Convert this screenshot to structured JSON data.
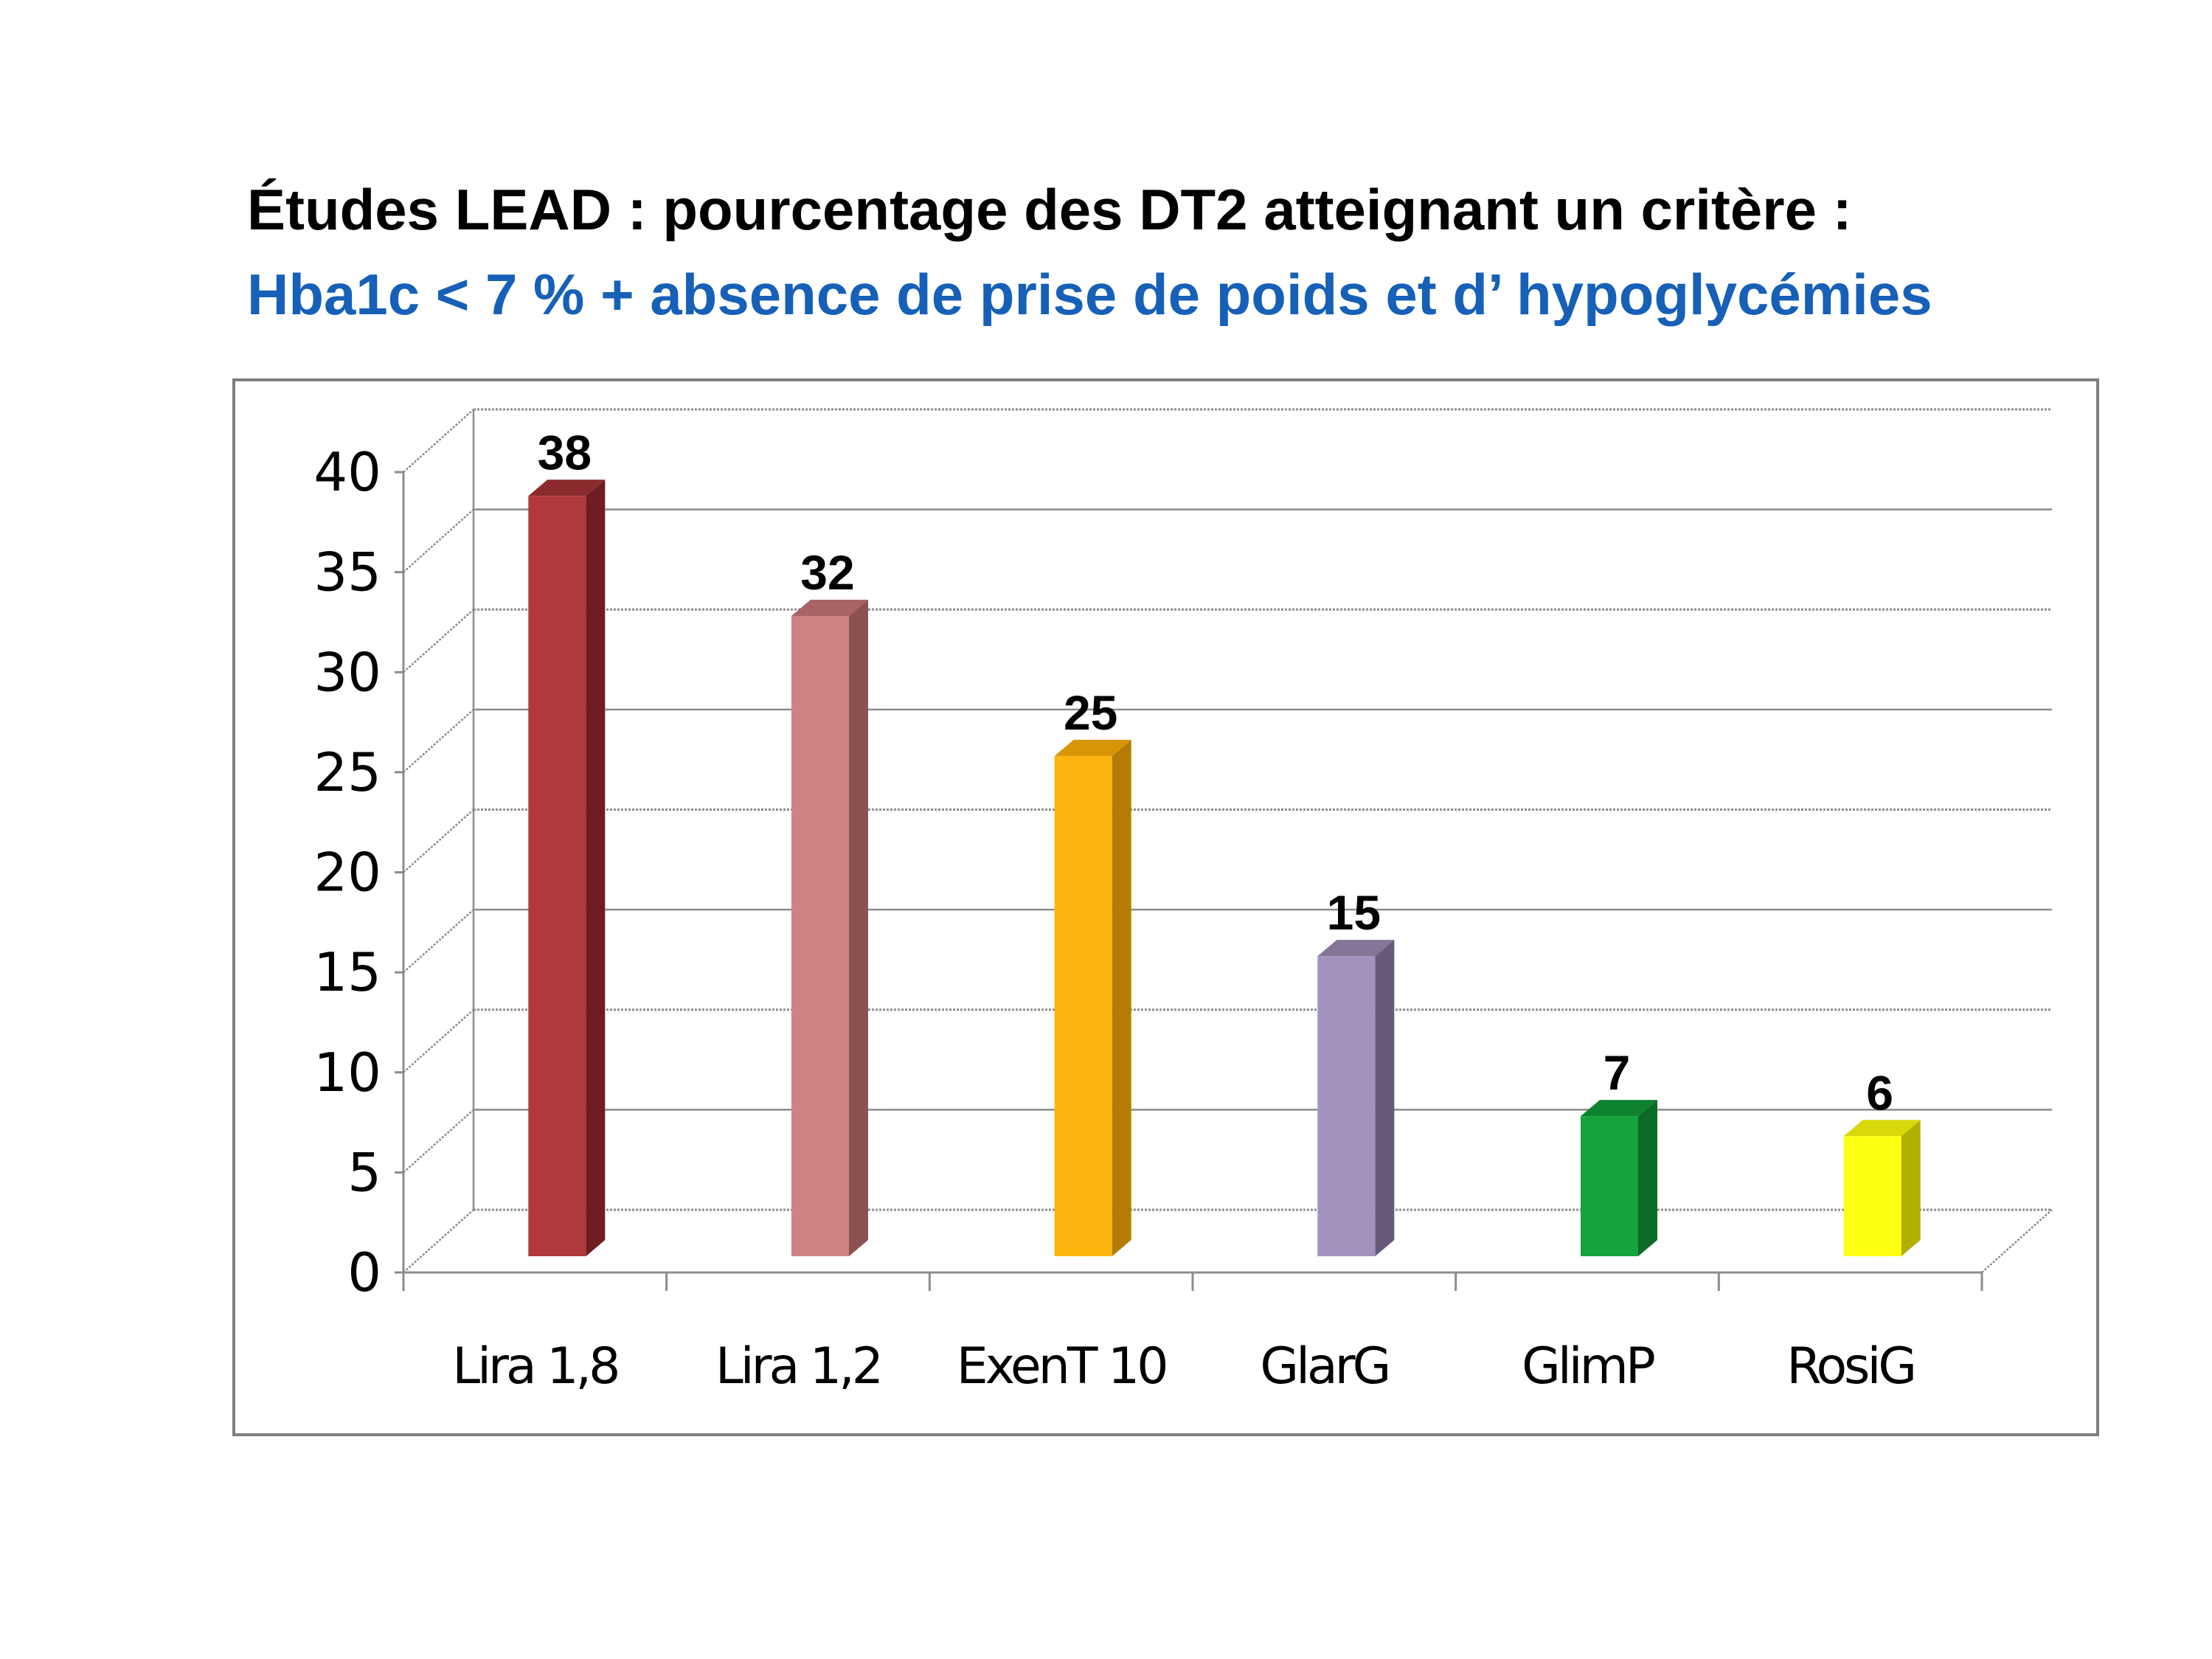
{
  "title": "Études LEAD  :  pourcentage des DT2 atteignant un critère :",
  "subtitle": "Hba1c < 7 % + absence de prise de poids et d’ hypoglycémies",
  "colors": {
    "title": "#000000",
    "subtitle": "#1660B8",
    "frame": "#7F7F7F",
    "gridline": "#8C8C8C",
    "text": "#000000"
  },
  "chart_data": {
    "type": "bar",
    "style": "3d-columns",
    "categories": [
      "Lira 1,8",
      "Lira 1,2",
      "ExenT 10",
      "GlarG",
      "GlimP",
      "RosiG"
    ],
    "values": [
      38,
      32,
      25,
      15,
      7,
      6
    ],
    "data_labels": [
      "38",
      "32",
      "25",
      "15",
      "7",
      "6"
    ],
    "bar_colors": [
      "#B0393C",
      "#CF8282",
      "#FCB40E",
      "#A392BE",
      "#15A33D",
      "#FFFF12"
    ],
    "bar_side_colors": [
      "#6E1E20",
      "#8C5252",
      "#B37D05",
      "#675979",
      "#0B6A26",
      "#B0B000"
    ],
    "bar_top_colors": [
      "#8A2A2C",
      "#A86363",
      "#D89605",
      "#857598",
      "#0F8230",
      "#D8D80A"
    ],
    "y_ticks": [
      "0",
      "5",
      "10",
      "15",
      "20",
      "25",
      "30",
      "35",
      "40"
    ],
    "ylim": [
      0,
      40
    ],
    "grid": true,
    "legend": "none"
  }
}
